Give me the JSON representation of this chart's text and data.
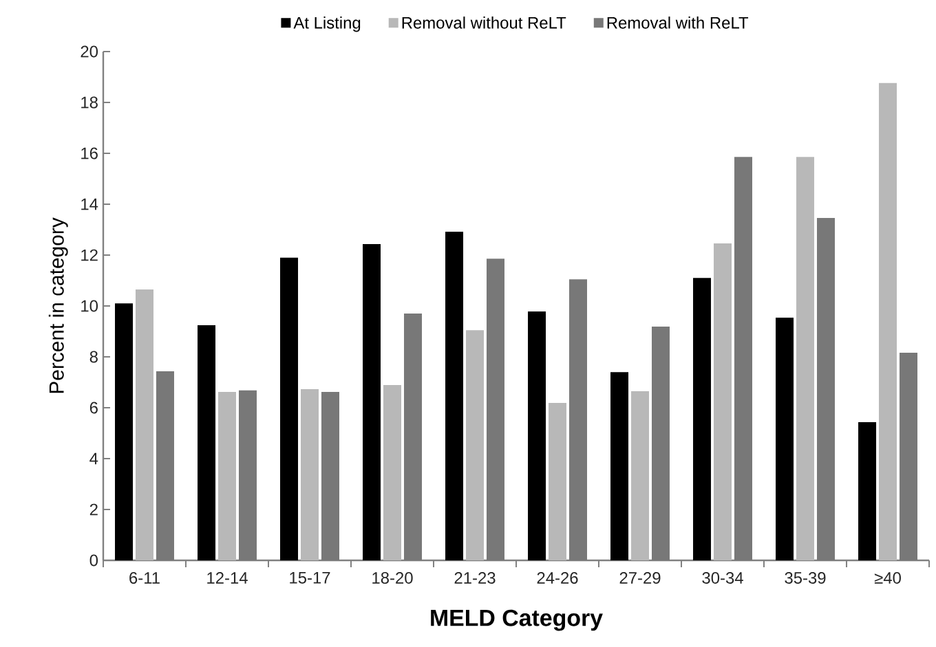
{
  "chart_data": {
    "type": "bar",
    "xlabel": "MELD Category",
    "ylabel": "Percent in category",
    "categories": [
      "6-11",
      "12-14",
      "15-17",
      "18-20",
      "21-23",
      "24-26",
      "27-29",
      "30-34",
      "35-39",
      "≥40"
    ],
    "series": [
      {
        "name": "At Listing",
        "color": "#000000",
        "values": [
          10.1,
          9.24,
          11.9,
          12.43,
          12.92,
          9.78,
          7.4,
          11.1,
          9.54,
          5.43
        ]
      },
      {
        "name": "Removal without ReLT",
        "color": "#b8b8b8",
        "values": [
          10.65,
          6.62,
          6.73,
          6.89,
          9.05,
          6.19,
          6.65,
          12.46,
          15.86,
          18.76
        ]
      },
      {
        "name": "Removal with ReLT",
        "color": "#787878",
        "values": [
          7.43,
          6.68,
          6.62,
          9.7,
          11.86,
          11.05,
          9.19,
          15.86,
          13.46,
          8.16
        ]
      }
    ],
    "ylim": [
      0,
      20
    ],
    "yticks": [
      0,
      2,
      4,
      6,
      8,
      10,
      12,
      14,
      16,
      18,
      20
    ],
    "grid": false,
    "legend": "top"
  }
}
